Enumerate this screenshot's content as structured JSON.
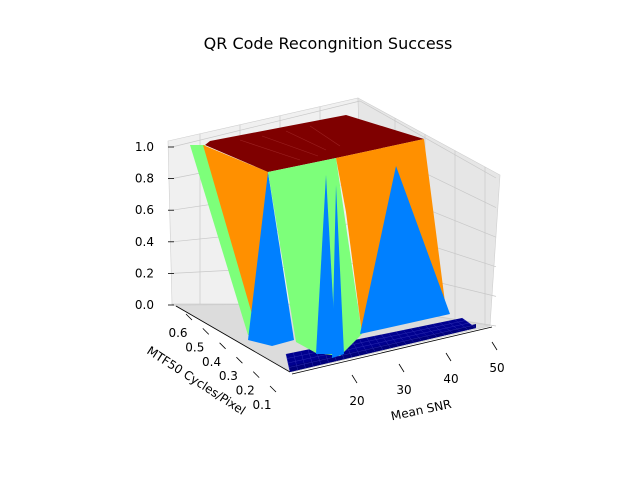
{
  "chart_data": {
    "type": "surface3d",
    "title": "QR Code Recongnition Success",
    "xlabel": "Mean SNR",
    "ylabel": "MTF50 Cycles/Pixel",
    "zlabel": "",
    "x_ticks": [
      "20",
      "30",
      "40",
      "50"
    ],
    "y_ticks": [
      "0.1",
      "0.2",
      "0.3",
      "0.4",
      "0.5",
      "0.6"
    ],
    "z_ticks": [
      "0.0",
      "0.2",
      "0.4",
      "0.6",
      "0.8",
      "1.0"
    ],
    "xlim": [
      10,
      50
    ],
    "ylim": [
      0.05,
      0.65
    ],
    "zlim": [
      0,
      1
    ],
    "colormap": "jet",
    "grid": true,
    "description_values": {
      "success_high_region": "low SNR and high MTF50 mostly 1.0",
      "success_low_region": "high SNR and low MTF50 near 0.0"
    }
  },
  "colors": {
    "dark_red": "#7f0000",
    "orange": "#ff9000",
    "light_green": "#7dff7a",
    "blue": "#0080ff",
    "navy": "#00008f",
    "deep_navy": "#00007a",
    "pane_left": "#f0f0f0",
    "pane_right": "#e6e6e6",
    "pane_floor": "#dcdcdc",
    "grid": "#c8c8c8"
  }
}
